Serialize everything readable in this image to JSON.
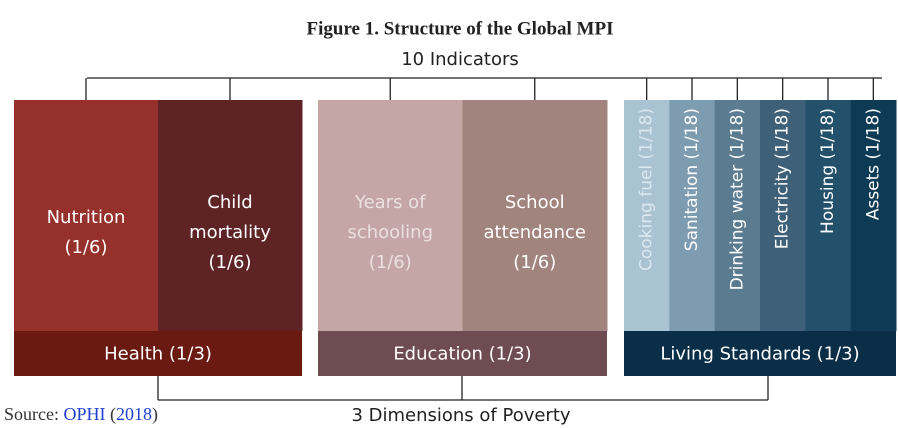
{
  "title": "Figure 1. Structure of the Global MPI",
  "top_label": "10 Indicators",
  "bottom_label": "3 Dimensions of Poverty",
  "source": [
    "Source: ",
    "OPHI",
    " (",
    "2018",
    ")"
  ],
  "dimensions": [
    {
      "label": "Health (1/3)",
      "indicators": [
        {
          "lines": [
            "Nutrition",
            "(1/6)"
          ]
        },
        {
          "lines": [
            "Child",
            "mortality",
            "(1/6)"
          ]
        }
      ]
    },
    {
      "label": "Education (1/3)",
      "indicators": [
        {
          "lines": [
            "Years of",
            "schooling",
            "(1/6)"
          ]
        },
        {
          "lines": [
            "School",
            "attendance",
            "(1/6)"
          ]
        }
      ]
    },
    {
      "label": "Living Standards (1/3)",
      "indicators": [
        {
          "lines": [
            "Cooking fuel (1/18)"
          ]
        },
        {
          "lines": [
            "Sanitation (1/18)"
          ]
        },
        {
          "lines": [
            "Drinking water (1/18)"
          ]
        },
        {
          "lines": [
            "Electricity (1/18)"
          ]
        },
        {
          "lines": [
            "Housing (1/18)"
          ]
        },
        {
          "lines": [
            "Assets (1/18)"
          ]
        }
      ]
    }
  ]
}
